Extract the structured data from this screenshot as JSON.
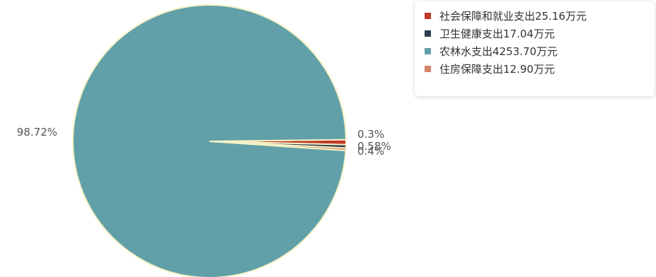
{
  "chart_data": {
    "type": "pie",
    "title": "",
    "slices": [
      {
        "name": "社会保障和就业支出25.16万元",
        "value": 25.16,
        "percent_label": "0.58%",
        "color": "#c0392b"
      },
      {
        "name": "卫生健康支出17.04万元",
        "value": 17.04,
        "percent_label": "0.4%",
        "color": "#2c3e50"
      },
      {
        "name": "农林水支出4253.70万元",
        "value": 4253.7,
        "percent_label": "98.72%",
        "color": "#61a0a8"
      },
      {
        "name": "住房保障支出12.90万元",
        "value": 12.9,
        "percent_label": "0.3%",
        "color": "#d48265"
      }
    ],
    "legend_position": "top-right",
    "slice_border_color": "#f5f2c6"
  }
}
